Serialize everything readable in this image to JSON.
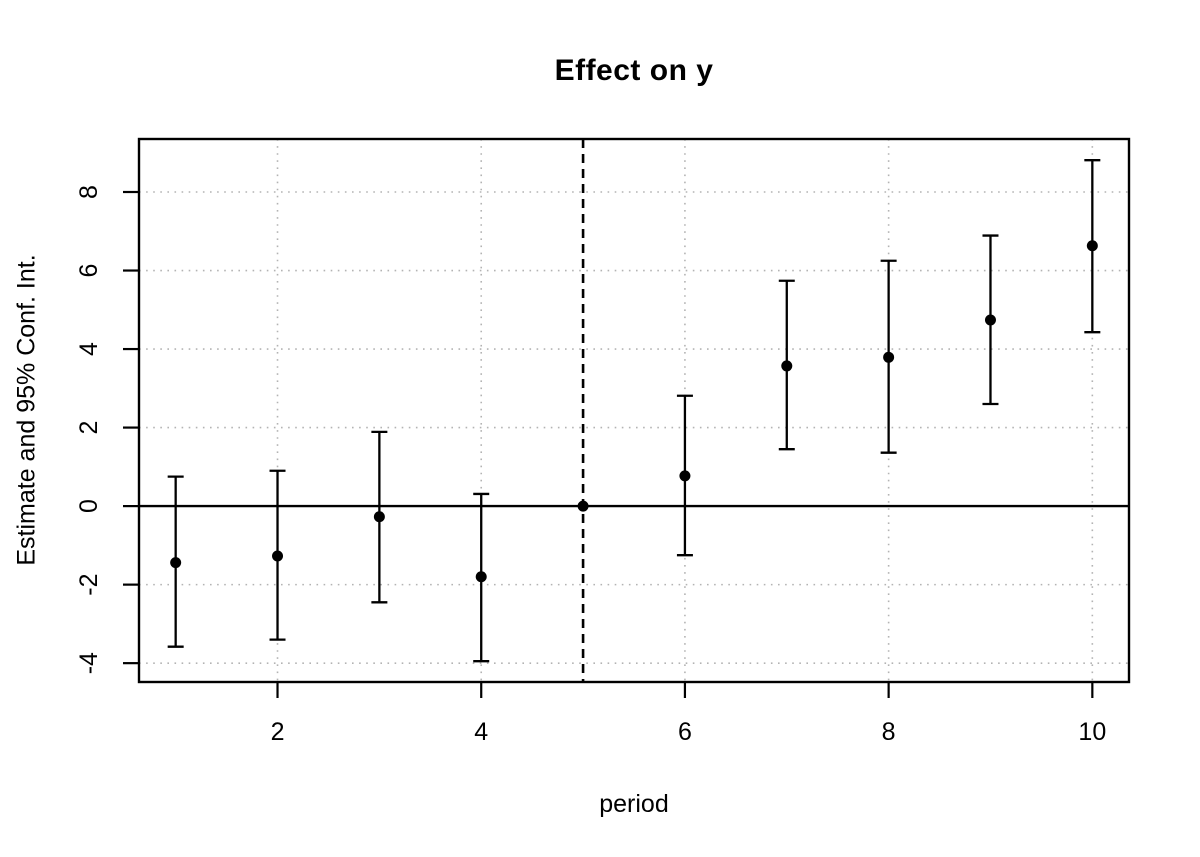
{
  "chart_data": {
    "type": "scatter",
    "title": "Effect on y",
    "xlabel": "period",
    "ylabel": "Estimate and 95% Conf. Int.",
    "x": [
      1,
      2,
      3,
      4,
      5,
      6,
      7,
      8,
      9,
      10
    ],
    "series": [
      {
        "name": "estimate",
        "values": [
          -1.44,
          -1.27,
          -0.27,
          -1.8,
          0.0,
          0.77,
          3.57,
          3.79,
          4.74,
          6.63
        ]
      },
      {
        "name": "ci_lower",
        "values": [
          -3.58,
          -3.4,
          -2.45,
          -3.95,
          0.0,
          -1.25,
          1.45,
          1.36,
          2.6,
          4.43
        ]
      },
      {
        "name": "ci_upper",
        "values": [
          0.75,
          0.9,
          1.89,
          0.31,
          0.0,
          2.81,
          5.74,
          6.25,
          6.89,
          8.81
        ]
      }
    ],
    "x_ticks": [
      2,
      4,
      6,
      8,
      10
    ],
    "y_ticks": [
      -4,
      -2,
      0,
      2,
      4,
      6,
      8
    ],
    "xlim": [
      0.64,
      10.36
    ],
    "ylim": [
      -4.48,
      9.35
    ],
    "reference_vline_x": 5,
    "zero_hline_y": 0,
    "grid": true,
    "legend": "none",
    "colors": {
      "foreground": "#000000",
      "grid": "#b3b3b3",
      "background": "#ffffff"
    }
  }
}
